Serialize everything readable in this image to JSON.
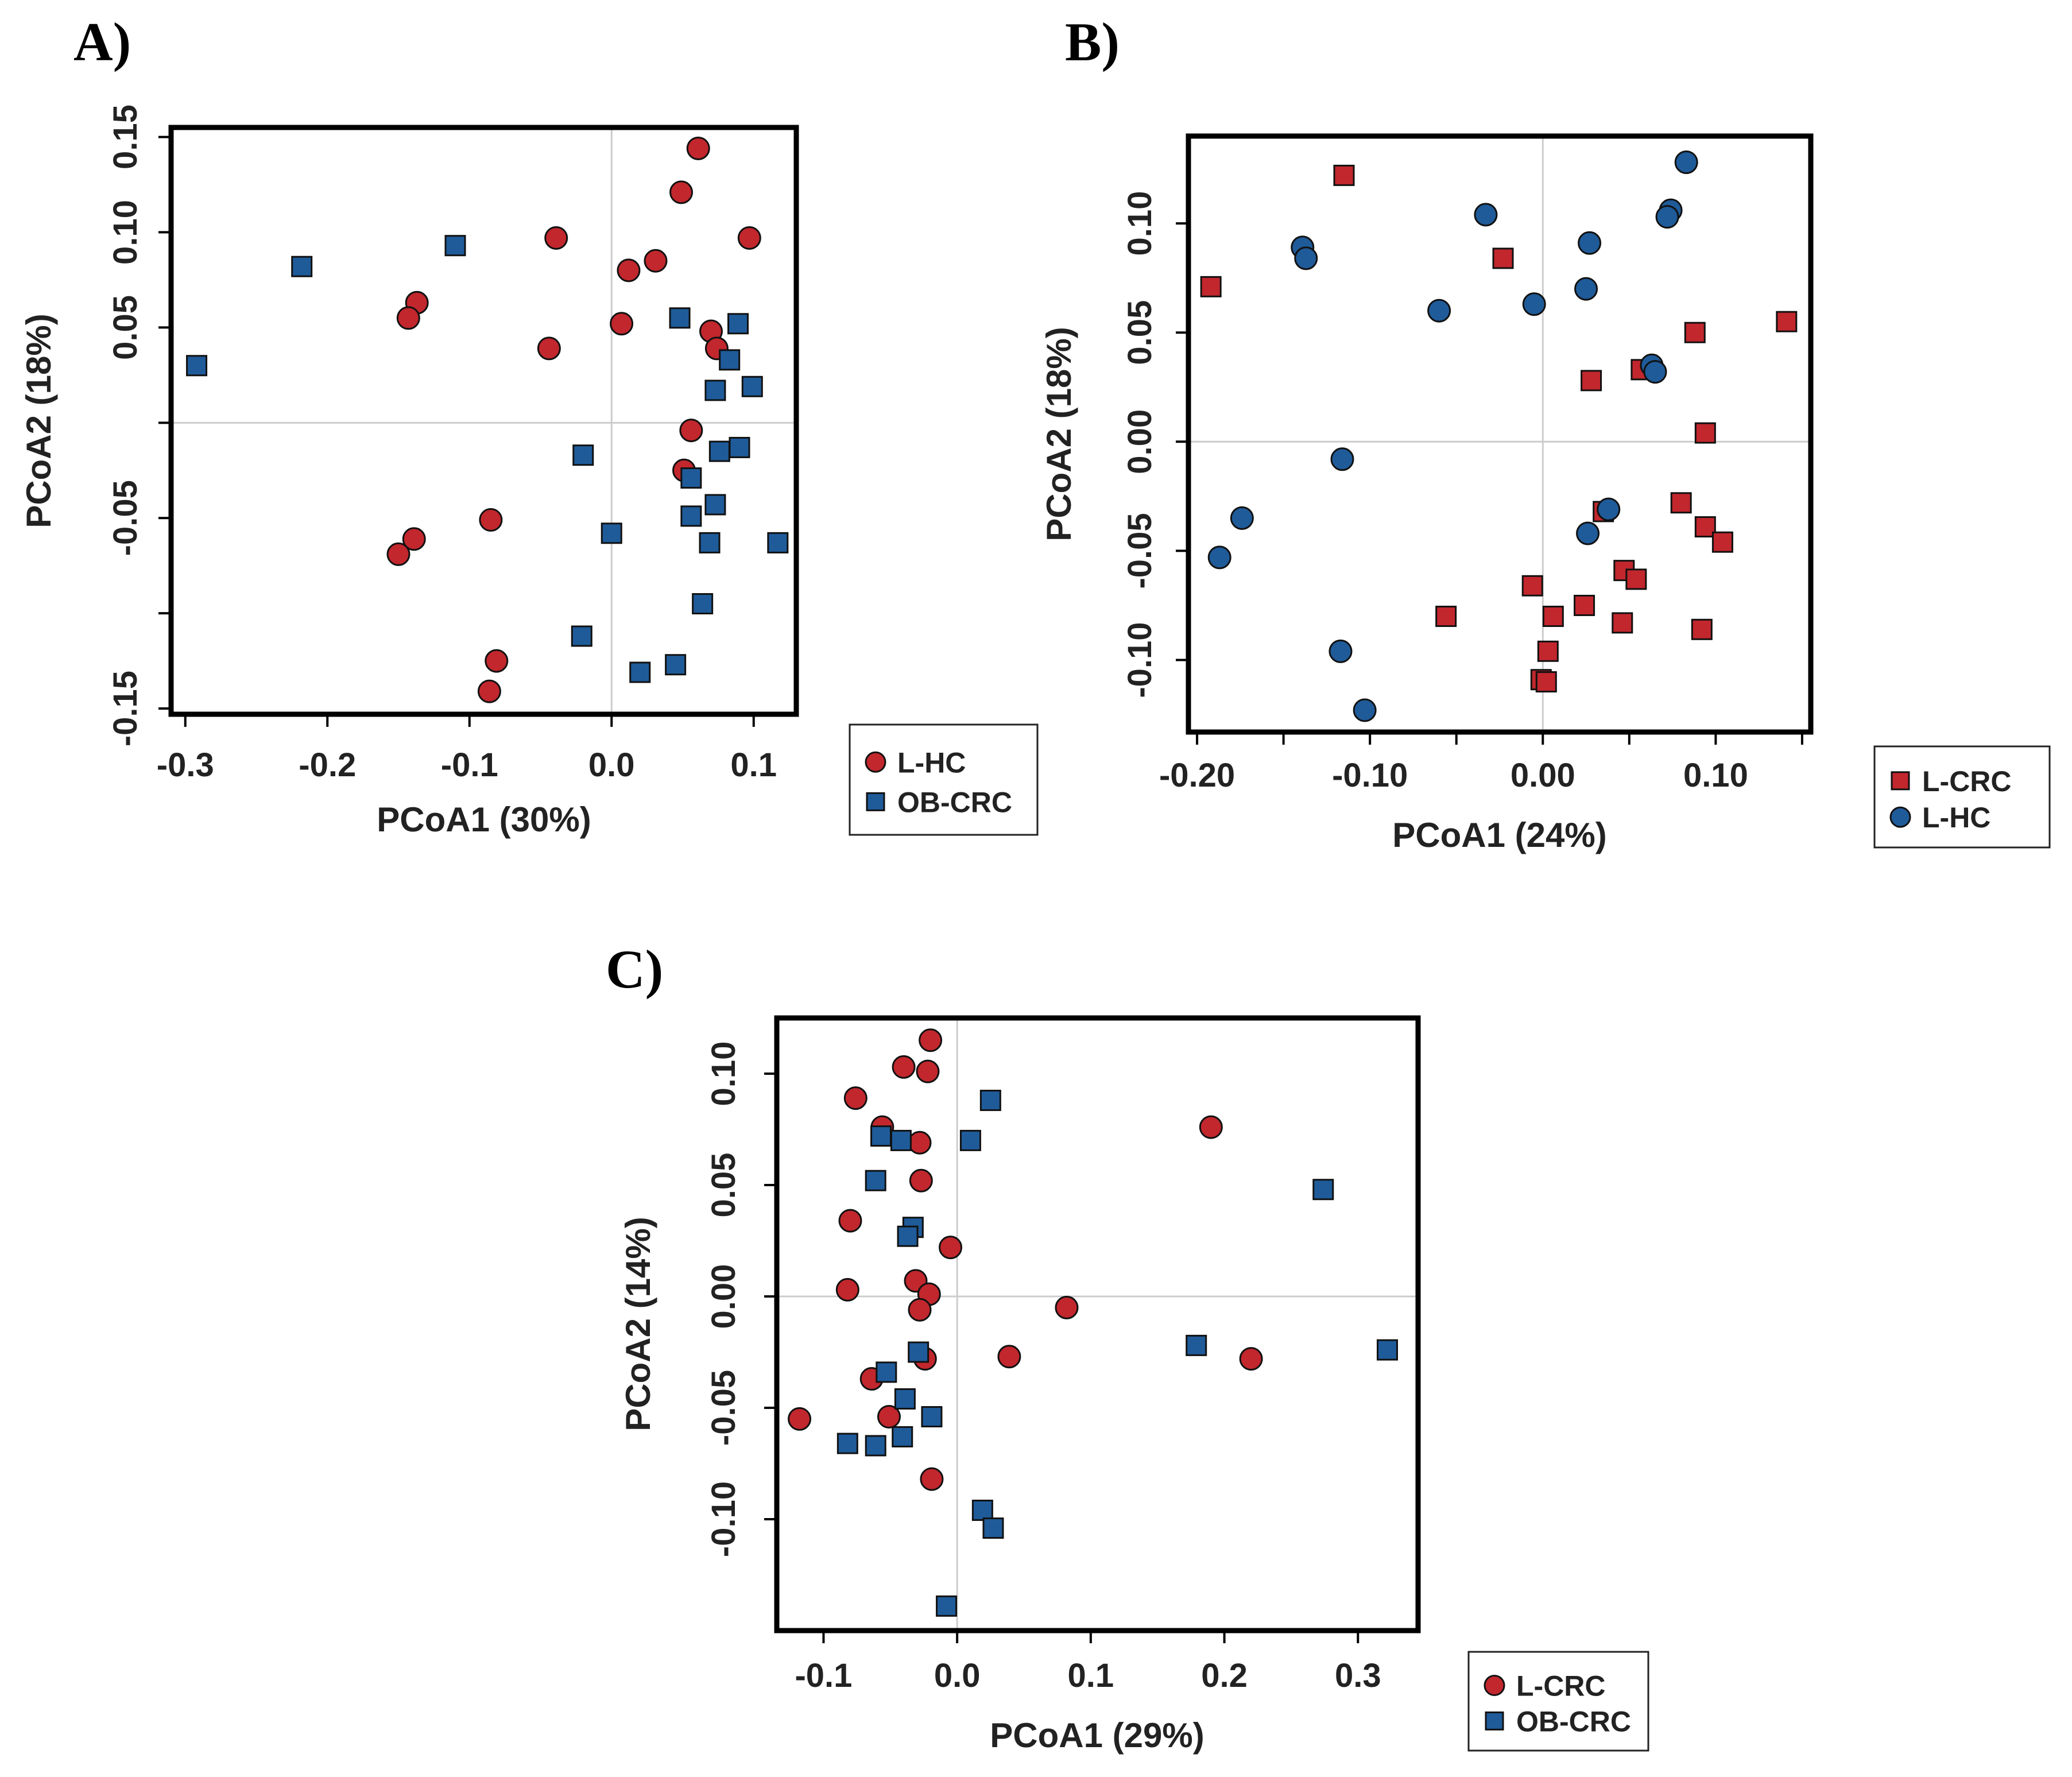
{
  "colors": {
    "red": "#c1272d",
    "blue": "#1f5b99",
    "zero_line": "#cccccc",
    "frame": "#000000"
  },
  "chart_data": [
    {
      "panel": "A)",
      "type": "scatter",
      "xlabel": "PCoA1 (30%)",
      "ylabel": "PCoA2 (18%)",
      "xlim": [
        -0.31,
        0.13
      ],
      "ylim": [
        -0.153,
        0.155
      ],
      "xticks": [
        -0.3,
        -0.2,
        -0.1,
        0.0,
        0.1
      ],
      "xtick_labels": [
        "-0.3",
        "-0.2",
        "-0.1",
        "0.0",
        "0.1"
      ],
      "yticks": [
        -0.15,
        -0.1,
        -0.05,
        0.0,
        0.05,
        0.1,
        0.15
      ],
      "ytick_labels": [
        "-0.15",
        "",
        "-0.05",
        "",
        "0.05",
        "0.10",
        "0.15"
      ],
      "legend_position": "bottom-right outside",
      "series": [
        {
          "name": "L-HC",
          "marker": "circle",
          "color": "#c1272d",
          "points": [
            [
              0.061,
              0.144
            ],
            [
              0.049,
              0.121
            ],
            [
              -0.039,
              0.097
            ],
            [
              0.097,
              0.097
            ],
            [
              0.031,
              0.085
            ],
            [
              0.012,
              0.08
            ],
            [
              -0.137,
              0.063
            ],
            [
              -0.143,
              0.055
            ],
            [
              0.007,
              0.052
            ],
            [
              0.07,
              0.048
            ],
            [
              -0.044,
              0.039
            ],
            [
              0.074,
              0.039
            ],
            [
              0.056,
              -0.004
            ],
            [
              0.051,
              -0.025
            ],
            [
              -0.085,
              -0.051
            ],
            [
              -0.139,
              -0.061
            ],
            [
              -0.15,
              -0.069
            ],
            [
              -0.081,
              -0.125
            ],
            [
              -0.086,
              -0.141
            ]
          ]
        },
        {
          "name": "OB-CRC",
          "marker": "square",
          "color": "#1f5b99",
          "points": [
            [
              -0.218,
              0.082
            ],
            [
              -0.11,
              0.093
            ],
            [
              -0.292,
              0.03
            ],
            [
              0.048,
              0.055
            ],
            [
              0.089,
              0.052
            ],
            [
              0.083,
              0.033
            ],
            [
              0.073,
              0.017
            ],
            [
              0.099,
              0.019
            ],
            [
              -0.02,
              -0.017
            ],
            [
              0.076,
              -0.015
            ],
            [
              0.09,
              -0.013
            ],
            [
              0.056,
              -0.029
            ],
            [
              0.056,
              -0.049
            ],
            [
              0.073,
              -0.043
            ],
            [
              0.0,
              -0.058
            ],
            [
              0.069,
              -0.063
            ],
            [
              0.117,
              -0.063
            ],
            [
              0.064,
              -0.095
            ],
            [
              -0.021,
              -0.112
            ],
            [
              0.02,
              -0.131
            ],
            [
              0.045,
              -0.127
            ]
          ]
        }
      ]
    },
    {
      "panel": "B)",
      "type": "scatter",
      "xlabel": "PCoA1 (24%)",
      "ylabel": "PCoA2 (18%)",
      "xlim": [
        -0.205,
        0.155
      ],
      "ylim": [
        -0.133,
        0.14
      ],
      "xticks": [
        -0.2,
        -0.15,
        -0.1,
        -0.05,
        0.0,
        0.05,
        0.1,
        0.15
      ],
      "xtick_labels": [
        "-0.20",
        "",
        "-0.10",
        "",
        "0.00",
        "",
        "0.10",
        ""
      ],
      "yticks": [
        -0.1,
        -0.05,
        0.0,
        0.05,
        0.1
      ],
      "ytick_labels": [
        "-0.10",
        "-0.05",
        "0.00",
        "0.05",
        "0.10"
      ],
      "legend_position": "bottom-right outside",
      "series": [
        {
          "name": "L-CRC",
          "marker": "square",
          "color": "#c1272d",
          "points": [
            [
              -0.115,
              0.122
            ],
            [
              -0.192,
              0.071
            ],
            [
              -0.023,
              0.084
            ],
            [
              0.088,
              0.05
            ],
            [
              0.141,
              0.055
            ],
            [
              0.057,
              0.033
            ],
            [
              0.028,
              0.028
            ],
            [
              0.094,
              0.004
            ],
            [
              0.035,
              -0.032
            ],
            [
              0.08,
              -0.028
            ],
            [
              0.094,
              -0.039
            ],
            [
              0.104,
              -0.046
            ],
            [
              0.047,
              -0.059
            ],
            [
              0.054,
              -0.063
            ],
            [
              -0.006,
              -0.066
            ],
            [
              -0.056,
              -0.08
            ],
            [
              0.024,
              -0.075
            ],
            [
              0.046,
              -0.083
            ],
            [
              0.006,
              -0.08
            ],
            [
              0.092,
              -0.086
            ],
            [
              0.003,
              -0.096
            ],
            [
              -0.001,
              -0.109
            ],
            [
              0.002,
              -0.11
            ]
          ]
        },
        {
          "name": "L-HC",
          "marker": "circle",
          "color": "#1f5b99",
          "points": [
            [
              0.083,
              0.128
            ],
            [
              -0.033,
              0.104
            ],
            [
              0.074,
              0.106
            ],
            [
              0.072,
              0.103
            ],
            [
              -0.139,
              0.089
            ],
            [
              -0.137,
              0.084
            ],
            [
              0.027,
              0.091
            ],
            [
              -0.005,
              0.063
            ],
            [
              0.025,
              0.07
            ],
            [
              -0.06,
              0.06
            ],
            [
              0.063,
              0.035
            ],
            [
              0.065,
              0.032
            ],
            [
              -0.116,
              -0.008
            ],
            [
              0.038,
              -0.031
            ],
            [
              -0.174,
              -0.035
            ],
            [
              0.026,
              -0.042
            ],
            [
              -0.187,
              -0.053
            ],
            [
              -0.117,
              -0.096
            ],
            [
              -0.103,
              -0.123
            ]
          ]
        }
      ]
    },
    {
      "panel": "C)",
      "type": "scatter",
      "xlabel": "PCoA1 (29%)",
      "ylabel": "PCoA2 (14%)",
      "xlim": [
        -0.135,
        0.345
      ],
      "ylim": [
        -0.15,
        0.125
      ],
      "xticks": [
        -0.1,
        0.0,
        0.1,
        0.2,
        0.3
      ],
      "xtick_labels": [
        "-0.1",
        "0.0",
        "0.1",
        "0.2",
        "0.3"
      ],
      "yticks": [
        -0.1,
        -0.05,
        0.0,
        0.05,
        0.1
      ],
      "ytick_labels": [
        "-0.10",
        "-0.05",
        "0.00",
        "0.05",
        "0.10"
      ],
      "legend_position": "bottom-right outside",
      "series": [
        {
          "name": "L-CRC",
          "marker": "circle",
          "color": "#c1272d",
          "points": [
            [
              -0.02,
              0.115
            ],
            [
              -0.04,
              0.103
            ],
            [
              -0.022,
              0.101
            ],
            [
              -0.076,
              0.089
            ],
            [
              -0.056,
              0.076
            ],
            [
              -0.028,
              0.069
            ],
            [
              0.19,
              0.076
            ],
            [
              -0.027,
              0.052
            ],
            [
              -0.08,
              0.034
            ],
            [
              -0.005,
              0.022
            ],
            [
              -0.082,
              0.003
            ],
            [
              -0.031,
              0.007
            ],
            [
              -0.021,
              0.001
            ],
            [
              -0.028,
              -0.006
            ],
            [
              0.082,
              -0.005
            ],
            [
              -0.024,
              -0.028
            ],
            [
              0.039,
              -0.027
            ],
            [
              0.22,
              -0.028
            ],
            [
              -0.064,
              -0.037
            ],
            [
              -0.118,
              -0.055
            ],
            [
              -0.051,
              -0.054
            ],
            [
              -0.019,
              -0.082
            ]
          ]
        },
        {
          "name": "OB-CRC",
          "marker": "square",
          "color": "#1f5b99",
          "points": [
            [
              0.025,
              0.088
            ],
            [
              -0.057,
              0.072
            ],
            [
              -0.042,
              0.07
            ],
            [
              0.01,
              0.07
            ],
            [
              -0.061,
              0.052
            ],
            [
              0.274,
              0.048
            ],
            [
              -0.033,
              0.031
            ],
            [
              -0.037,
              0.027
            ],
            [
              -0.029,
              -0.025
            ],
            [
              0.179,
              -0.022
            ],
            [
              0.322,
              -0.024
            ],
            [
              -0.053,
              -0.034
            ],
            [
              -0.039,
              -0.046
            ],
            [
              -0.019,
              -0.054
            ],
            [
              -0.082,
              -0.066
            ],
            [
              -0.061,
              -0.067
            ],
            [
              -0.041,
              -0.063
            ],
            [
              0.019,
              -0.096
            ],
            [
              0.027,
              -0.104
            ],
            [
              -0.008,
              -0.139
            ]
          ]
        }
      ]
    }
  ]
}
